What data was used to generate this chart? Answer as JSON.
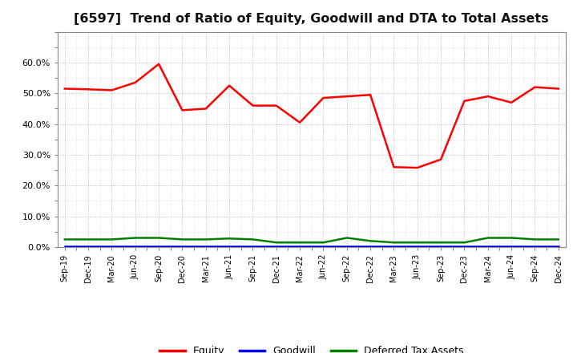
{
  "title": "[6597]  Trend of Ratio of Equity, Goodwill and DTA to Total Assets",
  "x_labels": [
    "Sep-19",
    "Dec-19",
    "Mar-20",
    "Jun-20",
    "Sep-20",
    "Dec-20",
    "Mar-21",
    "Jun-21",
    "Sep-21",
    "Dec-21",
    "Mar-22",
    "Jun-22",
    "Sep-22",
    "Dec-22",
    "Mar-23",
    "Jun-23",
    "Sep-23",
    "Dec-23",
    "Mar-24",
    "Jun-24",
    "Sep-24",
    "Dec-24"
  ],
  "equity": [
    51.5,
    51.3,
    51.0,
    53.5,
    59.5,
    44.5,
    45.0,
    52.5,
    46.0,
    46.0,
    40.5,
    48.5,
    49.0,
    49.5,
    26.0,
    25.8,
    28.5,
    47.5,
    49.0,
    47.0,
    52.0,
    51.5
  ],
  "goodwill": [
    0.3,
    0.3,
    0.3,
    0.3,
    0.3,
    0.3,
    0.3,
    0.3,
    0.3,
    0.3,
    0.3,
    0.3,
    0.3,
    0.3,
    0.3,
    0.3,
    0.3,
    0.3,
    0.3,
    0.3,
    0.3,
    0.3
  ],
  "dta": [
    2.5,
    2.5,
    2.5,
    3.0,
    3.0,
    2.5,
    2.5,
    2.8,
    2.5,
    1.5,
    1.5,
    1.5,
    3.0,
    2.0,
    1.5,
    1.5,
    1.5,
    1.5,
    3.0,
    3.0,
    2.5,
    2.5
  ],
  "equity_color": "#FF0000",
  "goodwill_color": "#0000FF",
  "dta_color": "#008000",
  "ylim": [
    0,
    70
  ],
  "yticks": [
    0,
    10,
    20,
    30,
    40,
    50,
    60
  ],
  "ytick_labels": [
    "0.0%",
    "10.0%",
    "20.0%",
    "30.0%",
    "40.0%",
    "50.0%",
    "60.0%"
  ],
  "background_color": "#FFFFFF",
  "plot_bg_color": "#FFFFFF",
  "grid_color": "#999999",
  "title_fontsize": 11.5,
  "legend_labels": [
    "Equity",
    "Goodwill",
    "Deferred Tax Assets"
  ]
}
